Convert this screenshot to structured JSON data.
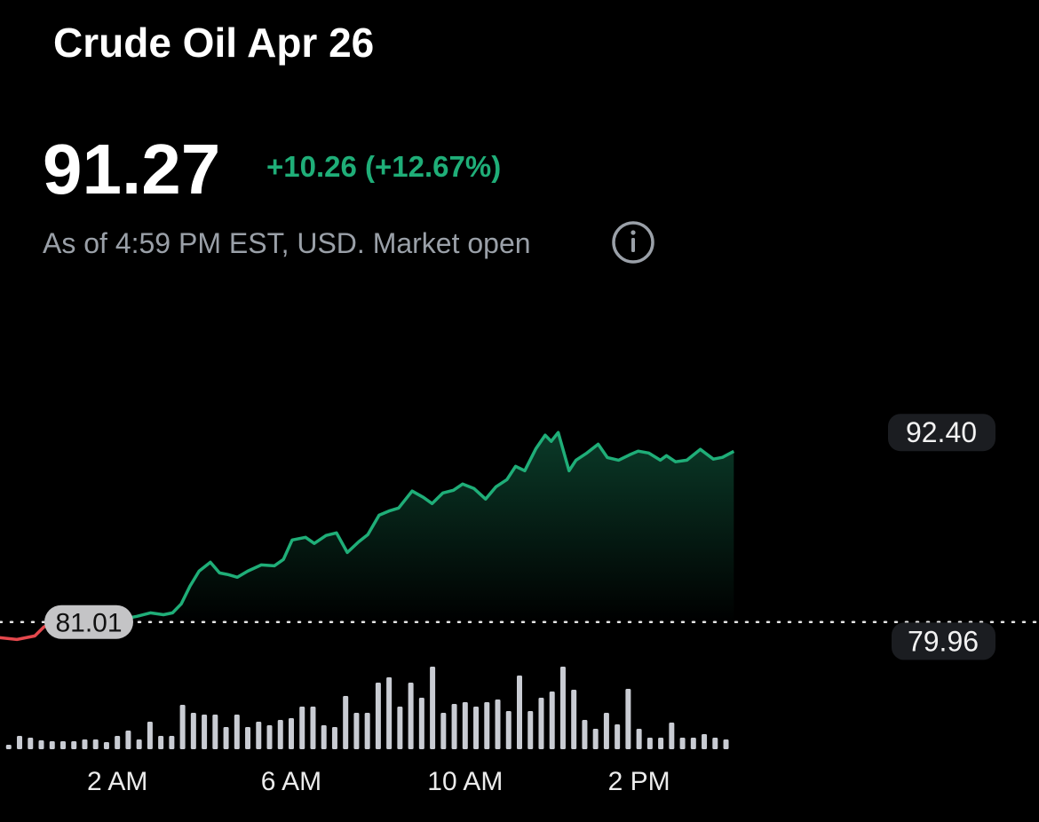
{
  "header": {
    "title": "Crude Oil Apr 26",
    "price": 91.27,
    "change": "+10.26 (+12.67%)",
    "status": "As of 4:59 PM EST, USD. Market open"
  },
  "chart_data": [
    {
      "type": "line",
      "x": [
        -0.71,
        -0.31,
        0.1,
        0.31,
        0.51,
        0.92,
        1.33,
        1.73,
        2.14,
        2.45,
        2.76,
        3.06,
        3.27,
        3.47,
        3.67,
        3.88,
        4.14,
        4.35,
        4.55,
        4.76,
        5.0,
        5.31,
        5.61,
        5.82,
        6.02,
        6.33,
        6.53,
        6.8,
        7.04,
        7.29,
        7.55,
        7.76,
        8.02,
        8.27,
        8.47,
        8.78,
        9.04,
        9.24,
        9.49,
        9.73,
        9.94,
        10.2,
        10.47,
        10.71,
        10.96,
        11.16,
        11.37,
        11.63,
        11.84,
        11.98,
        12.14,
        12.39,
        12.55,
        12.8,
        13.06,
        13.27,
        13.53,
        13.78,
        13.98,
        14.22,
        14.49,
        14.63,
        14.84,
        15.1,
        15.41,
        15.71,
        15.92,
        16.18
      ],
      "values": [
        80.07,
        79.96,
        80.17,
        80.71,
        80.92,
        81.03,
        81.03,
        81.13,
        81.19,
        81.35,
        81.56,
        81.45,
        81.56,
        82.1,
        83.16,
        84.07,
        84.6,
        83.96,
        83.86,
        83.7,
        84.07,
        84.44,
        84.39,
        84.77,
        85.94,
        86.1,
        85.73,
        86.21,
        86.37,
        85.19,
        85.83,
        86.26,
        87.43,
        87.7,
        87.86,
        88.88,
        88.5,
        88.13,
        88.77,
        88.93,
        89.3,
        89.04,
        88.4,
        89.14,
        89.57,
        90.37,
        90.1,
        91.44,
        92.24,
        91.87,
        92.4,
        90.1,
        90.74,
        91.17,
        91.7,
        90.9,
        90.74,
        91.06,
        91.28,
        91.17,
        90.74,
        91.01,
        90.64,
        90.74,
        91.39,
        90.8,
        90.91,
        91.27
      ],
      "color": "#1fae78",
      "down_color": "#e5484d",
      "previous_close": 81.01,
      "high": {
        "value": 92.4,
        "label": "92.40"
      },
      "low": 79.96,
      "xlim": [
        -0.7,
        23.2
      ],
      "ylim": [
        79.5,
        93
      ]
    },
    {
      "type": "bar",
      "x": [
        -0.5,
        -0.25,
        0,
        0.25,
        0.5,
        0.75,
        1,
        1.25,
        1.5,
        1.75,
        2,
        2.25,
        2.5,
        2.75,
        3,
        3.25,
        3.5,
        3.75,
        4,
        4.25,
        4.5,
        4.75,
        5,
        5.25,
        5.5,
        5.75,
        6,
        6.25,
        6.5,
        6.75,
        7,
        7.25,
        7.5,
        7.75,
        8,
        8.25,
        8.5,
        8.75,
        9,
        9.25,
        9.5,
        9.75,
        10,
        10.25,
        10.5,
        10.75,
        11,
        11.25,
        11.5,
        11.75,
        12,
        12.25,
        12.5,
        12.75,
        13,
        13.25,
        13.5,
        13.75,
        14,
        14.25,
        14.5,
        14.75,
        15,
        15.25,
        15.5,
        15.75,
        16
      ],
      "values": [
        5,
        15,
        13,
        10,
        9,
        9,
        9,
        11,
        11,
        8,
        15,
        21,
        11,
        31,
        15,
        15,
        50,
        41,
        39,
        39,
        25,
        39,
        25,
        31,
        27,
        33,
        35,
        48,
        48,
        27,
        25,
        60,
        41,
        41,
        75,
        81,
        48,
        75,
        58,
        93,
        41,
        51,
        53,
        48,
        53,
        56,
        43,
        83,
        43,
        58,
        65,
        93,
        67,
        33,
        23,
        41,
        28,
        68,
        23,
        13,
        13,
        30,
        13,
        13,
        17,
        13,
        11
      ],
      "color": "#c9ccd3",
      "xlim": [
        -0.7,
        23.2
      ],
      "ylim": [
        0,
        100
      ],
      "xticks": [
        {
          "value": 2,
          "label": "2 AM"
        },
        {
          "value": 6,
          "label": "6 AM"
        },
        {
          "value": 10,
          "label": "10 AM"
        },
        {
          "value": 14,
          "label": "2 PM"
        }
      ]
    }
  ]
}
